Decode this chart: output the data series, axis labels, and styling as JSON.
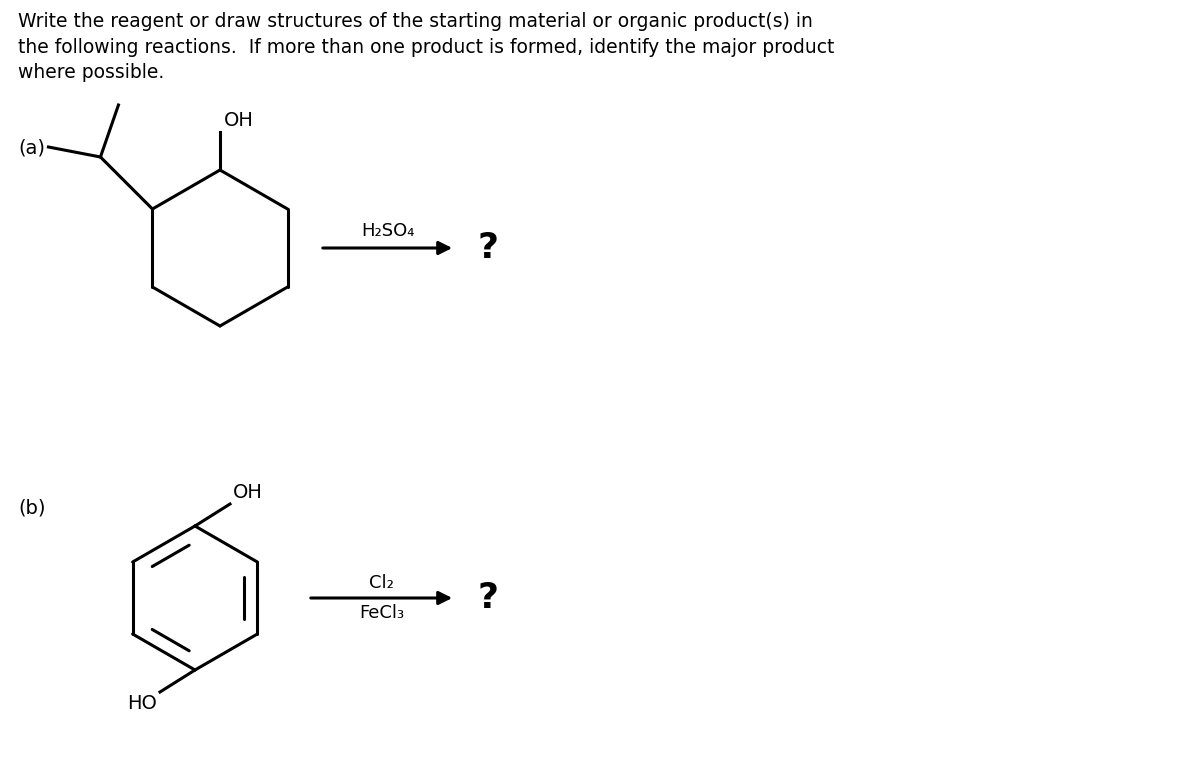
{
  "bg_color": "#ffffff",
  "title_text": "Write the reagent or draw structures of the starting material or organic product(s) in\nthe following reactions.  If more than one product is formed, identify the major product\nwhere possible.",
  "title_fontsize": 13.5,
  "label_a": "(a)",
  "label_b": "(b)",
  "label_fontsize": 14,
  "reagent_a": "H₂SO₄",
  "reagent_b_top": "Cl₂",
  "reagent_b_bot": "FeCl₃",
  "question_mark": "?",
  "line_color": "#000000",
  "lw": 2.2
}
